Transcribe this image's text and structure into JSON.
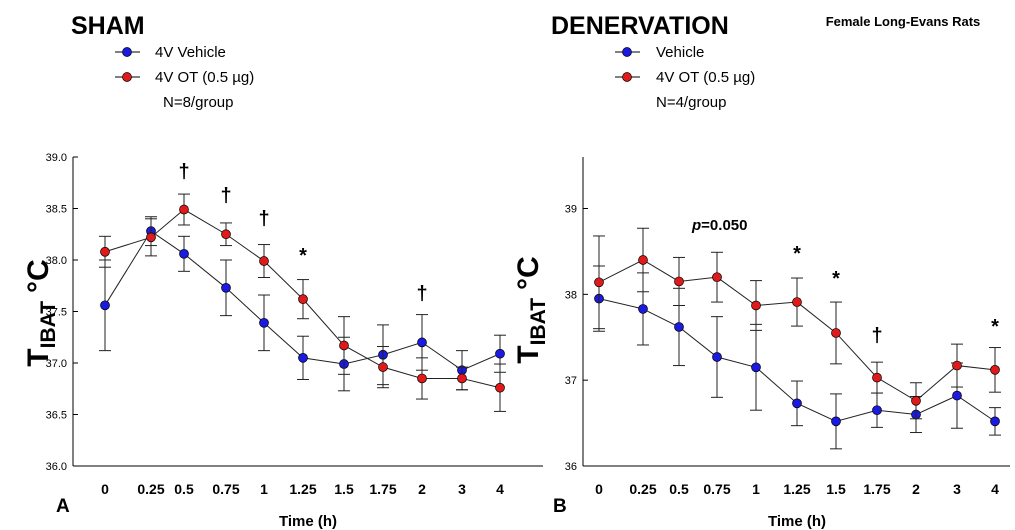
{
  "figure_note": "Female Long-Evans Rats",
  "chart_data": [
    {
      "type": "line",
      "panel_letter": "A",
      "title": "SHAM",
      "n_text": "N=8/group",
      "ylabel": "T",
      "ylabel_sub": "IBAT",
      "ylabel_unit": "°C",
      "xlabel": "Time (h)",
      "categories": [
        "0",
        "0.25",
        "0.5",
        "0.75",
        "1",
        "1.25",
        "1.5",
        "1.75",
        "2",
        "3",
        "4"
      ],
      "ylim": [
        36.0,
        39.0
      ],
      "yticks": [
        36.0,
        36.5,
        37.0,
        37.5,
        38.0,
        38.5,
        39.0
      ],
      "ytick_labels": [
        "36.0",
        "36.5",
        "37.0",
        "37.5",
        "38.0",
        "38.5",
        "39.0"
      ],
      "series": [
        {
          "name": "4V Vehicle",
          "color": "#1a1ae0",
          "values": [
            37.56,
            38.28,
            38.06,
            37.73,
            37.39,
            37.05,
            36.99,
            37.08,
            37.2,
            36.93,
            37.09
          ],
          "errors": [
            0.44,
            0.14,
            0.17,
            0.27,
            0.27,
            0.21,
            0.26,
            0.29,
            0.27,
            0.19,
            0.18
          ]
        },
        {
          "name": "4V OT (0.5 µg)",
          "color": "#e01a1a",
          "values": [
            38.08,
            38.22,
            38.49,
            38.25,
            37.99,
            37.62,
            37.17,
            36.96,
            36.85,
            36.85,
            36.76
          ],
          "errors": [
            0.15,
            0.18,
            0.15,
            0.11,
            0.16,
            0.19,
            0.28,
            0.2,
            0.2,
            0.11,
            0.23
          ]
        }
      ],
      "annotations": [
        {
          "category": "0.5",
          "text": "†"
        },
        {
          "category": "0.75",
          "text": "†"
        },
        {
          "category": "1",
          "text": "†"
        },
        {
          "category": "1.25",
          "text": "*"
        },
        {
          "category": "2",
          "text": "†"
        }
      ]
    },
    {
      "type": "line",
      "panel_letter": "B",
      "title": "DENERVATION",
      "n_text": "N=4/group",
      "ylabel": "T",
      "ylabel_sub": "IBAT",
      "ylabel_unit": "°C",
      "xlabel": "Time (h)",
      "categories": [
        "0",
        "0.25",
        "0.5",
        "0.75",
        "1",
        "1.25",
        "1.5",
        "1.75",
        "2",
        "3",
        "4"
      ],
      "ylim": [
        36,
        39.6
      ],
      "yticks": [
        36,
        37,
        38,
        39
      ],
      "ytick_labels": [
        "36",
        "37",
        "38",
        "39"
      ],
      "series": [
        {
          "name": "Vehicle",
          "color": "#1a1ae0",
          "values": [
            37.95,
            37.83,
            37.62,
            37.27,
            37.15,
            36.73,
            36.52,
            36.65,
            36.6,
            36.82,
            36.52
          ],
          "errors": [
            0.38,
            0.42,
            0.45,
            0.47,
            0.5,
            0.26,
            0.32,
            0.2,
            0.21,
            0.38,
            0.16
          ]
        },
        {
          "name": "4V OT (0.5 µg)",
          "color": "#e01a1a",
          "values": [
            38.14,
            38.4,
            38.15,
            38.2,
            37.87,
            37.91,
            37.55,
            37.03,
            36.76,
            37.17,
            37.12
          ],
          "errors": [
            0.54,
            0.37,
            0.28,
            0.29,
            0.29,
            0.28,
            0.36,
            0.18,
            0.21,
            0.25,
            0.26
          ]
        }
      ],
      "annotations": [
        {
          "category": "1.25",
          "text": "*"
        },
        {
          "category": "1.5",
          "text": "*"
        },
        {
          "category": "1.75",
          "text": "†"
        },
        {
          "category": "4",
          "text": "*"
        }
      ],
      "p_annotation": {
        "p": "p",
        "value": "=0.050"
      }
    }
  ]
}
